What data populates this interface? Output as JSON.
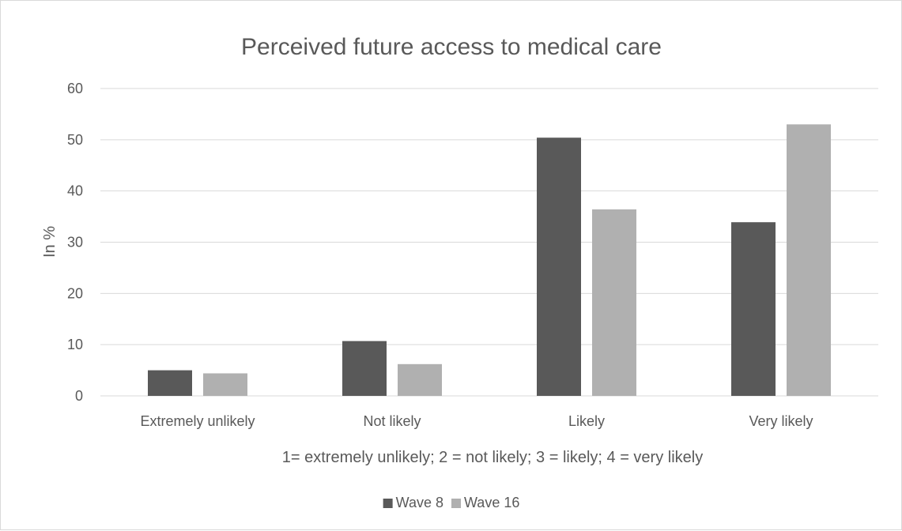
{
  "chart_data": {
    "type": "bar",
    "title": "Perceived future access to medical care",
    "xlabel": "1= extremely unlikely; 2 = not likely; 3 = likely; 4 = very likely",
    "ylabel": "In %",
    "categories": [
      "Extremely unlikely",
      "Not likely",
      "Likely",
      "Very likely"
    ],
    "series": [
      {
        "name": "Wave 8",
        "values": [
          5.0,
          10.7,
          50.4,
          33.9
        ],
        "color": "#595959"
      },
      {
        "name": "Wave 16",
        "values": [
          4.4,
          6.2,
          36.4,
          53.0
        ],
        "color": "#b0b0b0"
      }
    ],
    "ylim": [
      0,
      60
    ],
    "yticks": [
      0,
      10,
      20,
      30,
      40,
      50,
      60
    ],
    "grid": true,
    "legend_position": "bottom"
  }
}
